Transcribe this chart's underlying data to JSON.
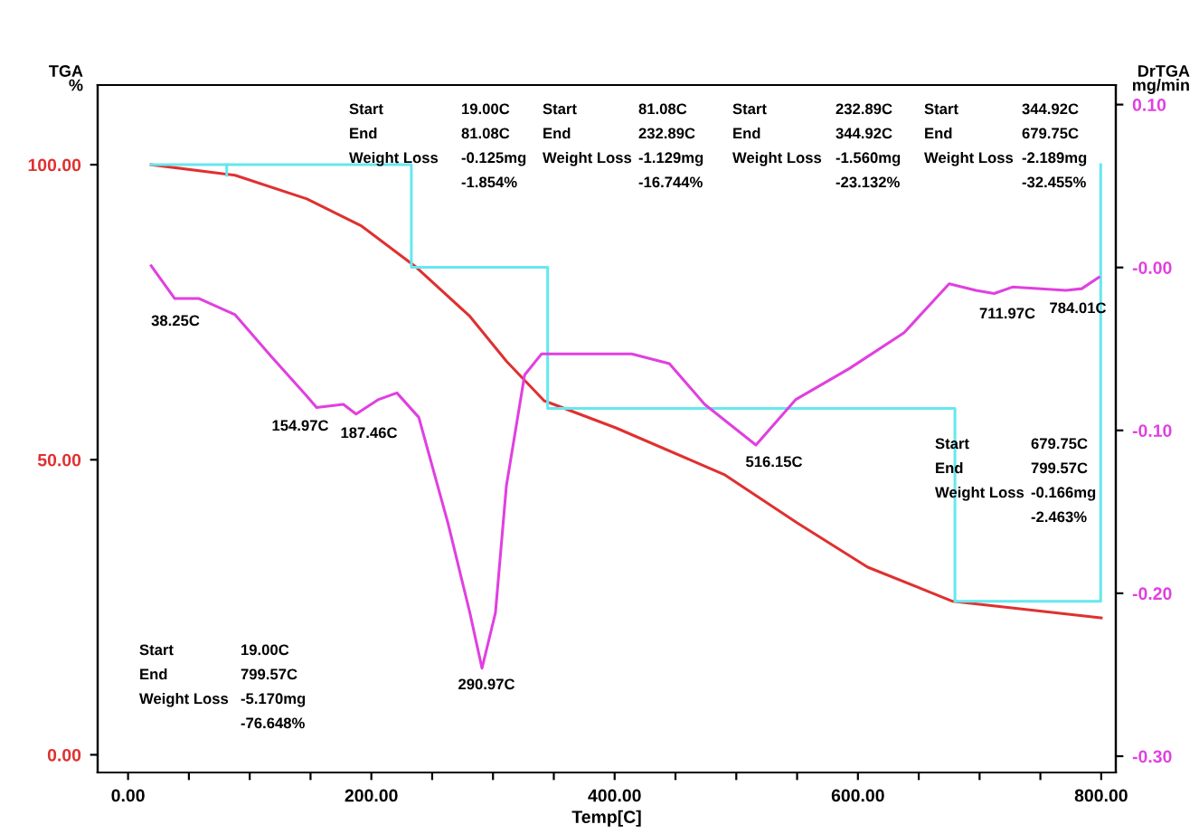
{
  "chart_data": {
    "type": "line",
    "xlabel": "Temp[C]",
    "ylabel": "TGA\n%",
    "y2label": "DrTGA\nmg/min",
    "xlim": [
      -25,
      812
    ],
    "ylim": [
      -3,
      113.5
    ],
    "y2lim": [
      -0.31,
      0.112
    ],
    "xticks": [
      {
        "value": 0,
        "label": "0.00"
      },
      {
        "value": 50,
        "label": null
      },
      {
        "value": 100,
        "label": null
      },
      {
        "value": 150,
        "label": null
      },
      {
        "value": 200,
        "label": "200.00"
      },
      {
        "value": 250,
        "label": null
      },
      {
        "value": 300,
        "label": null
      },
      {
        "value": 350,
        "label": null
      },
      {
        "value": 400,
        "label": "400.00"
      },
      {
        "value": 450,
        "label": null
      },
      {
        "value": 500,
        "label": null
      },
      {
        "value": 550,
        "label": null
      },
      {
        "value": 600,
        "label": "600.00"
      },
      {
        "value": 650,
        "label": null
      },
      {
        "value": 700,
        "label": null
      },
      {
        "value": 750,
        "label": null
      },
      {
        "value": 800,
        "label": "800.00"
      }
    ],
    "yticks": [
      {
        "value": 0,
        "label": "0.00"
      },
      {
        "value": 50,
        "label": "50.00"
      },
      {
        "value": 100,
        "label": "100.00"
      }
    ],
    "y2ticks": [
      {
        "value": 0.1,
        "label": "0.10"
      },
      {
        "value": 0,
        "label": "-0.00"
      },
      {
        "value": -0.1,
        "label": "-0.10"
      },
      {
        "value": -0.2,
        "label": "-0.20"
      },
      {
        "value": -0.3,
        "label": "-0.30"
      }
    ],
    "grid": false,
    "legend": false,
    "series": [
      {
        "color": "#e03030",
        "x": [
          19,
          88,
          147,
          192,
          237,
          281,
          311,
          342,
          401,
          490,
          550,
          608,
          678,
          800
        ],
        "values": [
          100,
          98.2,
          94.2,
          89.6,
          82.6,
          74.3,
          66.7,
          60,
          55.4,
          47.5,
          39.3,
          31.8,
          26,
          23.2
        ]
      },
      {
        "color": "#e040e0",
        "axis": "y2",
        "x": [
          19,
          38.25,
          58,
          88,
          117,
          147,
          154.97,
          177,
          187.46,
          206,
          221,
          239,
          263,
          281,
          290.97,
          302,
          311,
          326,
          340,
          385,
          414,
          445,
          474,
          516.15,
          549,
          593,
          638,
          675,
          697,
          711.97,
          727,
          771,
          784.01,
          798
        ],
        "values": [
          0.001,
          -0.019,
          -0.019,
          -0.029,
          -0.054,
          -0.079,
          -0.086,
          -0.084,
          -0.09,
          -0.081,
          -0.077,
          -0.092,
          -0.157,
          -0.212,
          -0.246,
          -0.212,
          -0.134,
          -0.066,
          -0.053,
          -0.053,
          -0.053,
          -0.059,
          -0.084,
          -0.109,
          -0.081,
          -0.062,
          -0.04,
          -0.01,
          -0.014,
          -0.016,
          -0.012,
          -0.014,
          -0.013,
          -0.006
        ]
      },
      {
        "color": "#66e8ee",
        "x": [
          19,
          232.89,
          232.89,
          344.92,
          344.92,
          679.75,
          679.75,
          799.57,
          799.57
        ],
        "values": [
          100,
          100,
          82.6,
          82.6,
          58.7,
          58.7,
          26,
          26,
          100
        ]
      },
      {
        "color": "#66e8ee",
        "x": [
          81.08,
          81.08
        ],
        "values": [
          100,
          98.2
        ]
      }
    ],
    "annotations": [
      "Start 19.00C\nEnd 81.08C\nWeight Loss -0.125mg\n-1.854%",
      "Start 81.08C\nEnd 232.89C\nWeight Loss -1.129mg\n-16.744%",
      "Start 232.89C\nEnd 344.92C\nWeight Loss -1.560mg\n-23.132%",
      "Start 344.92C\nEnd 679.75C\nWeight Loss -2.189mg\n-32.455%",
      "Start 679.75C\nEnd 799.57C\nWeight Loss -0.166mg\n-2.463%",
      "Start 19.00C\nEnd 799.57C\nWeight Loss -5.170mg\n-76.648%",
      "38.25C",
      "154.97C",
      "187.46C",
      "290.97C",
      "516.15C",
      "711.97C",
      "784.01C"
    ]
  }
}
